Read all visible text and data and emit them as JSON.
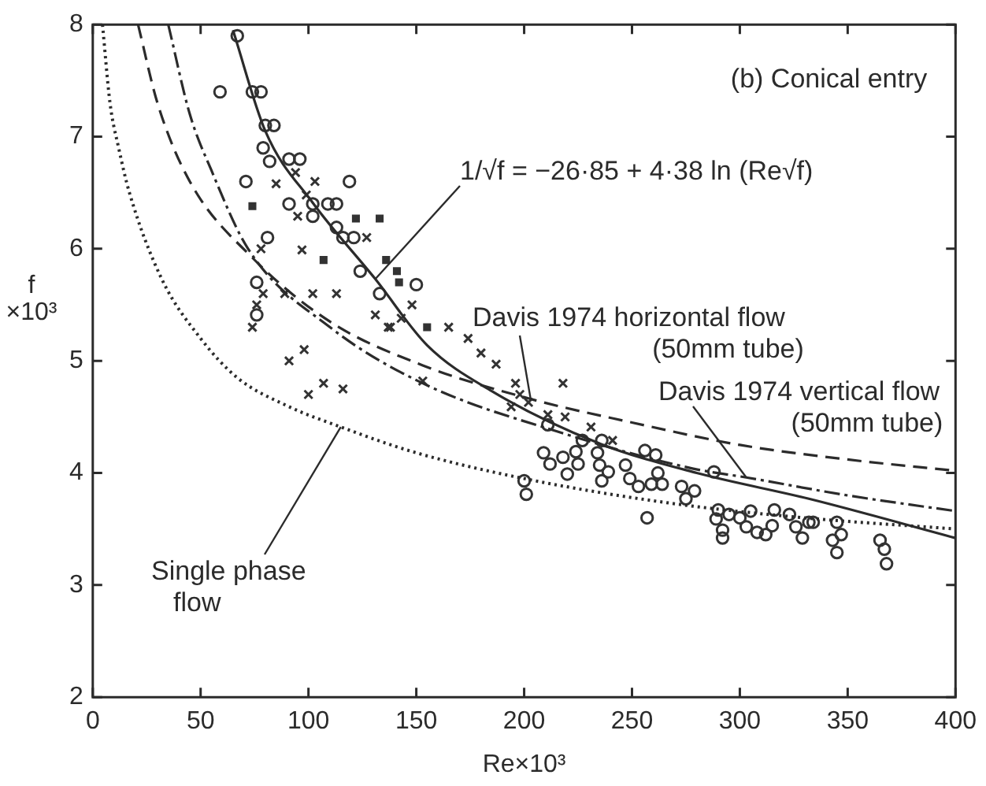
{
  "chart_data": {
    "type": "scatter",
    "xlabel": "Re×10³",
    "ylabel": "f ×10³",
    "xlim": [
      0,
      400
    ],
    "xticks": [
      0,
      50,
      100,
      150,
      200,
      250,
      300,
      350,
      400
    ],
    "ylim": [
      2,
      8
    ],
    "yticks": [
      2,
      3,
      4,
      5,
      6,
      7,
      8
    ],
    "grid": false,
    "legend": false,
    "annotations": [
      "(b) Conical entry",
      {
        "text": "1/√f = −26·85 + 4·38 ln (Re√f)",
        "x": 131,
        "y": 5.73
      },
      {
        "text": "Davis 1974 horizontal flow (50mm tube)",
        "x": 203,
        "y": 4.66
      },
      {
        "text": "Davis 1974 vertical flow (50mm tube)",
        "x": 303,
        "y": 3.96
      },
      {
        "text": "Single phase flow",
        "x": 115,
        "y": 4.41
      }
    ],
    "series": [
      {
        "type": "line",
        "color": "#2b2b2b",
        "line_style": "solid",
        "marker": "none",
        "x": [
          65,
          80,
          102,
          131,
          155,
          185,
          234,
          280,
          332,
          400
        ],
        "values": [
          7.95,
          7.05,
          6.41,
          5.73,
          5.14,
          4.73,
          4.27,
          4.0,
          3.77,
          3.42
        ]
      },
      {
        "type": "line",
        "color": "#2b2b2b",
        "line_style": "dashed",
        "marker": "none",
        "x": [
          21,
          30,
          45,
          74,
          110,
          153,
          203,
          250,
          300,
          350,
          400
        ],
        "values": [
          8,
          7.3,
          6.6,
          5.92,
          5.35,
          4.96,
          4.66,
          4.45,
          4.25,
          4.12,
          4.02
        ]
      },
      {
        "type": "line",
        "color": "#2b2b2b",
        "line_style": "dashdot",
        "marker": "none",
        "x": [
          35,
          45,
          55,
          72,
          110,
          153,
          217,
          278,
          303,
          350,
          400
        ],
        "values": [
          8,
          7.2,
          6.7,
          6.0,
          5.3,
          4.8,
          4.36,
          4.04,
          3.96,
          3.8,
          3.66
        ]
      },
      {
        "type": "line",
        "color": "#2b2b2b",
        "line_style": "dotted",
        "marker": "none",
        "x": [
          4.5,
          8,
          12,
          17,
          32,
          50,
          67,
          90,
          115,
          150,
          200,
          268,
          330,
          400
        ],
        "values": [
          8,
          7.3,
          6.9,
          6.5,
          5.73,
          5.2,
          4.85,
          4.6,
          4.41,
          4.18,
          3.95,
          3.73,
          3.6,
          3.5
        ]
      },
      {
        "type": "scatter",
        "color": "#333333",
        "marker": "circle",
        "x": [
          67,
          59,
          74,
          78,
          79,
          82,
          76,
          76,
          150
        ],
        "values": [
          7.9,
          7.4,
          7.4,
          7.4,
          6.9,
          6.78,
          5.7,
          5.41,
          5.68
        ]
      },
      {
        "type": "scatter",
        "color": "#333333",
        "marker": "circle",
        "x": [
          80,
          84,
          91,
          96,
          71,
          119,
          91,
          102,
          109,
          113,
          102,
          113,
          116,
          121,
          81,
          124,
          133
        ],
        "values": [
          7.1,
          7.1,
          6.8,
          6.8,
          6.6,
          6.6,
          6.4,
          6.4,
          6.4,
          6.4,
          6.29,
          6.19,
          6.1,
          6.1,
          6.1,
          5.8,
          5.6
        ]
      },
      {
        "type": "scatter",
        "color": "#333333",
        "marker": "cross",
        "x": [
          85,
          95,
          127,
          78,
          113,
          131,
          148,
          76,
          74,
          89,
          165,
          174,
          196,
          198,
          202,
          97,
          98,
          107,
          180,
          187,
          153
        ],
        "values": [
          6.58,
          6.29,
          6.1,
          6.0,
          5.6,
          5.41,
          5.5,
          5.5,
          5.3,
          5.6,
          5.3,
          5.2,
          4.8,
          4.7,
          4.63,
          5.99,
          5.1,
          4.8,
          5.07,
          4.97,
          4.82
        ]
      },
      {
        "type": "scatter",
        "color": "#333333",
        "marker": "cross",
        "x": [
          103,
          94,
          99,
          102,
          79,
          137,
          91,
          100,
          116,
          143,
          138,
          194,
          218,
          211,
          219,
          231,
          241
        ],
        "values": [
          6.6,
          6.68,
          6.48,
          5.6,
          5.6,
          5.3,
          5.0,
          4.7,
          4.75,
          5.38,
          5.3,
          4.59,
          4.8,
          4.52,
          4.5,
          4.41,
          4.29
        ]
      },
      {
        "type": "scatter",
        "color": "#333333",
        "marker": "square",
        "x": [
          74,
          122,
          133,
          107,
          136,
          141,
          142,
          155
        ],
        "values": [
          6.38,
          6.27,
          6.27,
          5.9,
          5.9,
          5.8,
          5.7,
          5.3
        ]
      },
      {
        "type": "scatter",
        "color": "#333333",
        "marker": "circle",
        "x": [
          211,
          227,
          236,
          209,
          212,
          218,
          224,
          225,
          220,
          234,
          235,
          236,
          239,
          247,
          249,
          253,
          259,
          264,
          256,
          261,
          262,
          200,
          201,
          257,
          273,
          279,
          275,
          288,
          290,
          289,
          292,
          292,
          295,
          300,
          305,
          303,
          308,
          312,
          315,
          316,
          323,
          326,
          329,
          332,
          334,
          345,
          347,
          343,
          345,
          365,
          367,
          368
        ],
        "values": [
          4.43,
          4.29,
          4.29,
          4.18,
          4.08,
          4.14,
          4.19,
          4.08,
          3.99,
          4.18,
          4.07,
          3.93,
          4.01,
          4.07,
          3.95,
          3.88,
          3.9,
          3.9,
          4.2,
          4.16,
          4.0,
          3.93,
          3.81,
          3.6,
          3.88,
          3.84,
          3.77,
          4.01,
          3.67,
          3.59,
          3.49,
          3.42,
          3.63,
          3.6,
          3.66,
          3.52,
          3.47,
          3.45,
          3.53,
          3.67,
          3.63,
          3.52,
          3.42,
          3.56,
          3.56,
          3.56,
          3.45,
          3.4,
          3.29,
          3.4,
          3.32,
          3.19
        ]
      }
    ]
  }
}
